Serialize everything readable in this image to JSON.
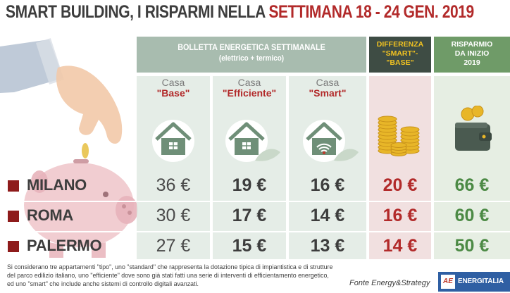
{
  "title": {
    "part1": "SMART BUILDING, I RISPARMI NELLA ",
    "part2": "SETTIMANA 18 - 24 GEN. 2019"
  },
  "header": {
    "group_line1": "BOLLETTA ENERGETICA SETTIMANALE",
    "group_line2": "(elettrico + termico)",
    "diff": [
      "DIFFERENZA",
      "\"SMART\"-",
      "\"BASE\""
    ],
    "savings": [
      "RISPARMIO",
      "DA INIZIO",
      "2019"
    ]
  },
  "columns": [
    {
      "label": "Casa",
      "quoted": "\"Base\""
    },
    {
      "label": "Casa",
      "quoted": "\"Efficiente\""
    },
    {
      "label": "Casa",
      "quoted": "\"Smart\""
    }
  ],
  "rows": [
    {
      "city": "MILANO",
      "base": "36 €",
      "efficiente": "19 €",
      "smart": "16 €",
      "differenza": "20 €",
      "risparmio": "66 €"
    },
    {
      "city": "ROMA",
      "base": "30 €",
      "efficiente": "17 €",
      "smart": "14 €",
      "differenza": "16 €",
      "risparmio": "60 €"
    },
    {
      "city": "PALERMO",
      "base": "27 €",
      "efficiente": "15 €",
      "smart": "13 €",
      "differenza": "14 €",
      "risparmio": "50 €"
    }
  ],
  "footnote": "Si considerano tre appartamenti \"tipo\", uno \"standard\" che rappresenta la dotazione tipica di impiantistica e di strutture del parco edilizio italiano, uno \"efficiente\" dove sono già stati fatti una serie di interventi di efficientamento energetico, ed uno \"smart\" che include anche sistemi di controllo digitali avanzati.",
  "source": "Fonte Energy&Strategy",
  "logo": {
    "mark": "AE",
    "text": "ENERGITALIA"
  },
  "colors": {
    "accent_red": "#b22a2a",
    "header_gray": "#a8bcaf",
    "header_dark": "#3e4c44",
    "header_green": "#6f9b68",
    "gold": "#f2c321",
    "savings_green": "#4c8a45"
  }
}
